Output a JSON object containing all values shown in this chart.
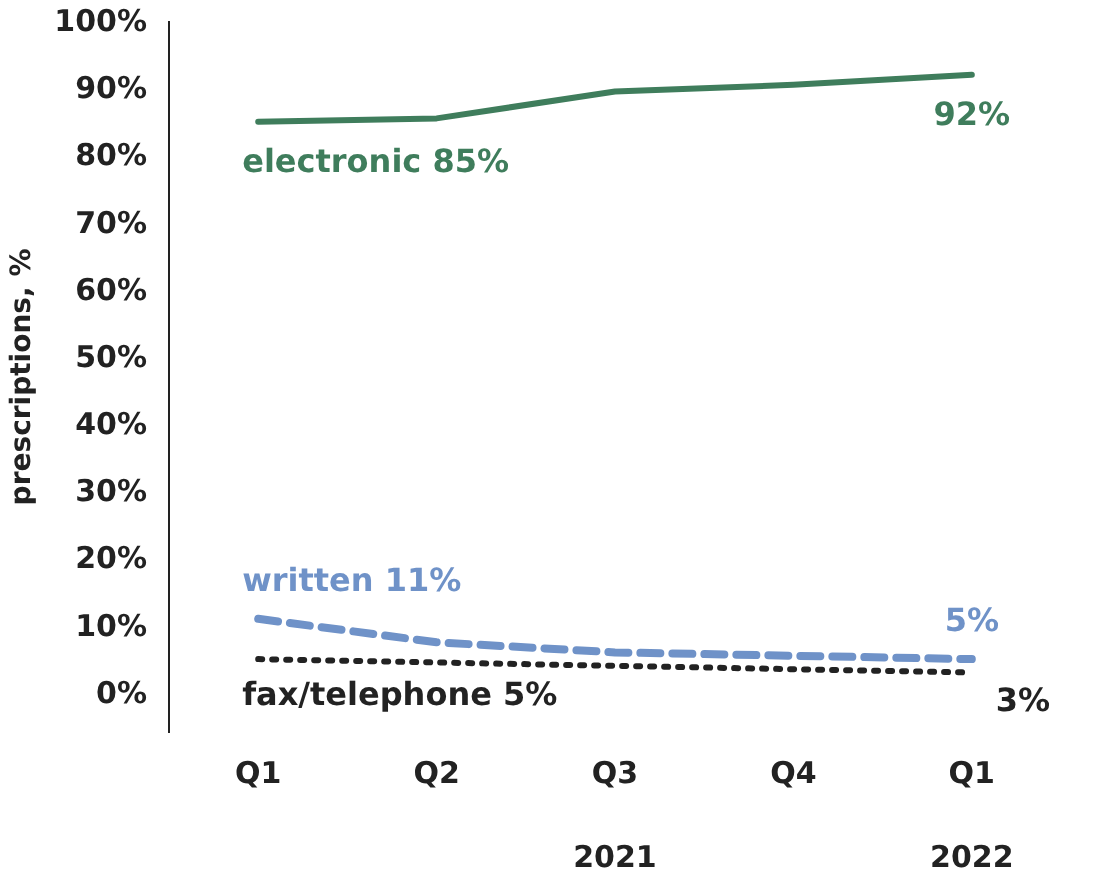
{
  "chart_data": {
    "type": "line",
    "ylabel": "prescriptions, %",
    "categories": [
      "Q1",
      "Q2",
      "Q3",
      "Q4",
      "Q1"
    ],
    "series": [
      {
        "name": "electronic",
        "color": "#3f7d5c",
        "line_style": "solid",
        "values": [
          85,
          85.5,
          89.5,
          90.5,
          92
        ],
        "value_labels": [
          "85%",
          null,
          null,
          null,
          "92%"
        ]
      },
      {
        "name": "written",
        "color": "#6f92c8",
        "line_style": "dashed",
        "values": [
          11,
          7.5,
          6,
          5.5,
          5
        ],
        "value_labels": [
          "11%",
          null,
          null,
          null,
          "5%"
        ]
      },
      {
        "name": "fax/telephone",
        "color": "#222222",
        "line_style": "dotted",
        "values": [
          5,
          4.5,
          4,
          3.5,
          3
        ],
        "value_labels": [
          "5%",
          null,
          null,
          null,
          "3%"
        ]
      }
    ],
    "ylim": [
      -6,
      100
    ],
    "yticks": [
      {
        "value": 0,
        "label": "0%"
      },
      {
        "value": 10,
        "label": "10%"
      },
      {
        "value": 20,
        "label": "20%"
      },
      {
        "value": 30,
        "label": "30%"
      },
      {
        "value": 40,
        "label": "40%"
      },
      {
        "value": 50,
        "label": "50%"
      },
      {
        "value": 60,
        "label": "60%"
      },
      {
        "value": 70,
        "label": "70%"
      },
      {
        "value": 80,
        "label": "80%"
      },
      {
        "value": 90,
        "label": "90%"
      },
      {
        "value": 100,
        "label": "100%"
      }
    ],
    "annotations": [
      "2021",
      "2022"
    ],
    "grid": false,
    "legend": false,
    "marker": "none"
  }
}
